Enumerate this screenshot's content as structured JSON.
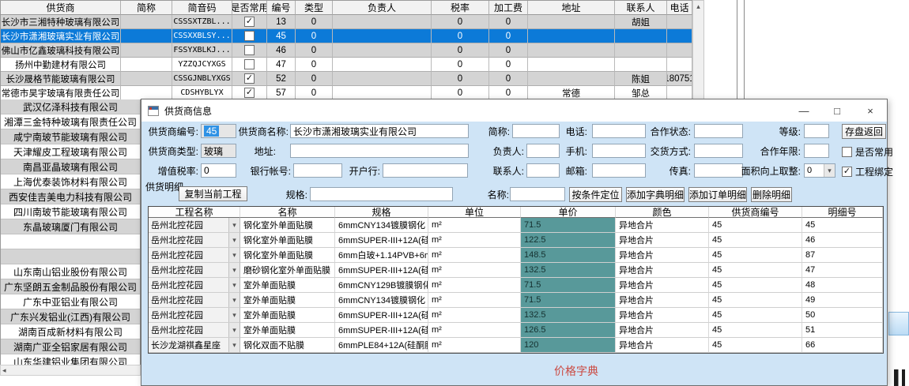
{
  "background_table": {
    "columns": [
      "供货商",
      "简称",
      "简音码",
      "是否常用",
      "编号",
      "类型",
      "负责人",
      "税率",
      "加工费",
      "地址",
      "联系人",
      "电话"
    ],
    "rows": [
      {
        "supplier": "长沙市三湘特种玻璃有限公司",
        "abbr": "",
        "pinyin": "CSSSXTZBL...",
        "common": true,
        "number": "13",
        "type": "0",
        "manager": "",
        "tax": "0",
        "fee": "0",
        "address": "",
        "contact": "胡姐",
        "phone": "",
        "selected": false
      },
      {
        "supplier": "长沙市潇湘玻璃实业有限公司",
        "abbr": "",
        "pinyin": "CSSXXBLSY...",
        "common": false,
        "number": "45",
        "type": "0",
        "manager": "",
        "tax": "0",
        "fee": "0",
        "address": "",
        "contact": "",
        "phone": "",
        "selected": true
      },
      {
        "supplier": "佛山市亿鑫玻璃科技有限公司",
        "abbr": "",
        "pinyin": "FSSYXBLKJ...",
        "common": false,
        "number": "46",
        "type": "0",
        "manager": "",
        "tax": "0",
        "fee": "0",
        "address": "",
        "contact": "",
        "phone": "",
        "selected": false
      },
      {
        "supplier": "扬州中勤建材有限公司",
        "abbr": "",
        "pinyin": "YZZQJCYXGS",
        "common": false,
        "number": "47",
        "type": "0",
        "manager": "",
        "tax": "0",
        "fee": "0",
        "address": "",
        "contact": "",
        "phone": "",
        "selected": false
      },
      {
        "supplier": "长沙晟格节能玻璃有限公司",
        "abbr": "",
        "pinyin": "CSSGJNBLYXGS",
        "common": true,
        "number": "52",
        "type": "0",
        "manager": "",
        "tax": "0",
        "fee": "0",
        "address": "",
        "contact": "陈姐",
        "phone": "180751",
        "selected": false
      },
      {
        "supplier": "常德市昊宇玻璃有限责任公司",
        "abbr": "",
        "pinyin": "CDSHYBLYX",
        "common": true,
        "number": "57",
        "type": "0",
        "manager": "",
        "tax": "0",
        "fee": "0",
        "address": "常德",
        "contact": "邹总",
        "phone": "",
        "selected": false
      }
    ]
  },
  "left_list": {
    "items": [
      "武汉亿泽科技有限公司",
      "湘潭三金特种玻璃有限责任公司",
      "咸宁南玻节能玻璃有限公司",
      "天津耀皮工程玻璃有限公司",
      "南昌亚晶玻璃有限公司",
      "上海优泰装饰材料有限公司",
      "西安佳吉美电力科技有限公司",
      "四川南玻节能玻璃有限公司",
      "东晶玻璃厦门有限公司",
      "",
      "",
      "山东南山铝业股份有限公司",
      "广东坚朗五金制品股份有限公司",
      "广东中亚铝业有限公司",
      "广东兴发铝业(江西)有限公司",
      "湖南百成新材料有限公司",
      "湖南广亚全铝家居有限公司",
      "山东华建铝业集团有限公司"
    ]
  },
  "dialog": {
    "title": "供货商信息",
    "form": {
      "supplier_no_label": "供货商编号:",
      "supplier_no_value": "45",
      "supplier_name_label": "供货商名称:",
      "supplier_name_value": "长沙市潇湘玻璃实业有限公司",
      "abbr_label": "简称:",
      "abbr_value": "",
      "phone_label": "电话:",
      "phone_value": "",
      "coop_status_label": "合作状态:",
      "coop_status_value": "",
      "grade_label": "等级:",
      "grade_value": "",
      "save_button": "存盘返回",
      "type_label": "供货商类型:",
      "type_value": "玻璃",
      "address_label": "地址:",
      "address_value": "",
      "manager_label": "负责人:",
      "manager_value": "",
      "mobile_label": "手机:",
      "mobile_value": "",
      "delivery_label": "交货方式:",
      "delivery_value": "",
      "coop_years_label": "合作年限:",
      "coop_years_value": "",
      "common_checkbox_label": "是否常用",
      "common_checked": false,
      "vat_label": "增值税率:",
      "vat_value": "0",
      "bank_account_label": "银行帐号:",
      "bank_account_value": "",
      "bank_label": "开户行:",
      "bank_value": "",
      "contact_label": "联系人:",
      "contact_value": "",
      "email_label": "邮箱:",
      "email_value": "",
      "fax_label": "传真:",
      "fax_value": "",
      "round_up_label": "面积向上取整:",
      "round_up_value": "0",
      "binding_checkbox_label": "工程绑定",
      "binding_checked": true
    },
    "detail": {
      "group_label": "供货明细",
      "copy_button": "复制当前工程",
      "spec_label": "规格:",
      "spec_value": "",
      "name_label": "名称:",
      "name_value": "",
      "locate_button": "按条件定位",
      "add_dict_button": "添加字典明细",
      "add_order_button": "添加订单明细",
      "delete_button": "删除明细",
      "grid": {
        "columns": [
          "工程名称",
          "名称",
          "规格",
          "单位",
          "单价",
          "颜色",
          "供货商编号",
          "明细号"
        ],
        "rows": [
          [
            "岳州北控花园",
            "钢化室外单面贴膜",
            "6mmCNY134镀膜钢化",
            "m²",
            "71.5",
            "异地合片",
            "45",
            "45"
          ],
          [
            "岳州北控花园",
            "钢化室外单面贴膜",
            "6mmSUPER-III+12A(硅...",
            "m²",
            "122.5",
            "异地合片",
            "45",
            "46"
          ],
          [
            "岳州北控花园",
            "钢化室外单面贴膜",
            "6mm白玻+1.14PVB+6mm...",
            "m²",
            "148.5",
            "异地合片",
            "45",
            "87"
          ],
          [
            "岳州北控花园",
            "磨砂钢化室外单面贴膜",
            "6mmSUPER-III+12A(硅...",
            "m²",
            "132.5",
            "异地合片",
            "45",
            "47"
          ],
          [
            "岳州北控花园",
            "室外单面贴膜",
            "6mmCNY129B镀膜钢化",
            "m²",
            "71.5",
            "异地合片",
            "45",
            "48"
          ],
          [
            "岳州北控花园",
            "室外单面贴膜",
            "6mmCNY134镀膜钢化",
            "m²",
            "71.5",
            "异地合片",
            "45",
            "49"
          ],
          [
            "岳州北控花园",
            "室外单面贴膜",
            "6mmSUPER-III+12A(硅...",
            "m²",
            "132.5",
            "异地合片",
            "45",
            "50"
          ],
          [
            "岳州北控花园",
            "室外单面贴膜",
            "6mmSUPER-III+12A(硅...",
            "m²",
            "126.5",
            "异地合片",
            "45",
            "51"
          ],
          [
            "长沙龙湖祺鑫星座",
            "钢化双面不贴膜",
            "6mmPLE84+12A(硅酮胶...",
            "m²",
            "120",
            "异地合片",
            "45",
            "66"
          ]
        ]
      },
      "footer_text": "价格字典"
    }
  },
  "icons": {
    "check": "✓",
    "combo_arrow": "▾",
    "scroll_up": "▴",
    "scroll_left": "◂",
    "minimize": "—",
    "maximize": "□",
    "close": "×"
  },
  "colors": {
    "selection_blue": "#0c7ad8",
    "price_teal": "#58999a",
    "footer_red": "#cb4a42",
    "dialog_bg": "#cfe4f6"
  }
}
